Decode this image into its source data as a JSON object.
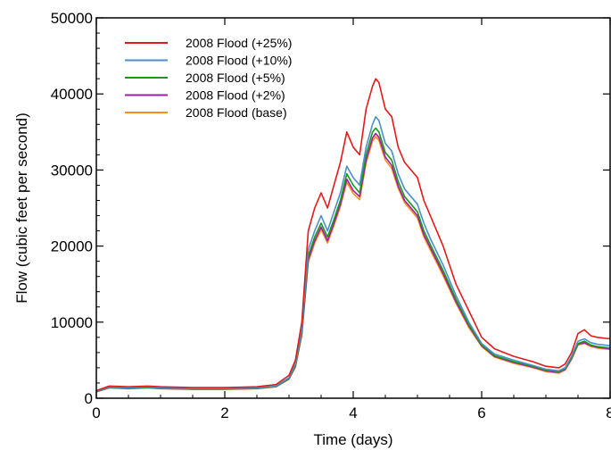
{
  "chart_data": {
    "type": "line",
    "xlabel": "Time (days)",
    "ylabel": "Flow (cubic feet per second)",
    "xlim": [
      0,
      8
    ],
    "ylim": [
      0,
      50000
    ],
    "xticks": [
      "0",
      "2",
      "4",
      "6",
      "8"
    ],
    "yticks": [
      "0",
      "10000",
      "20000",
      "30000",
      "40000",
      "50000"
    ],
    "grid": false,
    "legend_position": "top-left",
    "x": [
      0,
      0.2,
      0.5,
      0.8,
      1.0,
      1.5,
      2.0,
      2.5,
      2.8,
      3.0,
      3.1,
      3.2,
      3.3,
      3.4,
      3.5,
      3.6,
      3.7,
      3.8,
      3.9,
      4.0,
      4.1,
      4.2,
      4.3,
      4.35,
      4.4,
      4.5,
      4.6,
      4.7,
      4.8,
      4.9,
      5.0,
      5.1,
      5.2,
      5.4,
      5.6,
      5.8,
      6.0,
      6.2,
      6.5,
      6.8,
      7.0,
      7.2,
      7.3,
      7.4,
      7.5,
      7.6,
      7.7,
      7.8,
      8.0
    ],
    "series": [
      {
        "name": "2008 Flood (+25%)",
        "color": "#e31a1c",
        "values": [
          1000,
          1600,
          1500,
          1600,
          1500,
          1400,
          1400,
          1500,
          1800,
          3000,
          5000,
          10000,
          22000,
          25000,
          27000,
          25000,
          28000,
          31000,
          35000,
          33000,
          32000,
          38000,
          41000,
          42000,
          41500,
          38000,
          37000,
          33000,
          31000,
          30000,
          29000,
          26000,
          24000,
          20000,
          15000,
          11500,
          8000,
          6500,
          5500,
          4800,
          4200,
          4000,
          4500,
          6000,
          8500,
          9000,
          8200,
          8000,
          7800
        ]
      },
      {
        "name": "2008 Flood (+10%)",
        "color": "#4a8fc7",
        "values": [
          900,
          1450,
          1350,
          1450,
          1350,
          1250,
          1250,
          1350,
          1600,
          2700,
          4500,
          9000,
          19500,
          22000,
          24000,
          22000,
          24500,
          27000,
          30500,
          29000,
          28000,
          33000,
          36000,
          37000,
          36500,
          33500,
          32500,
          29500,
          27500,
          26500,
          25500,
          23000,
          21000,
          17500,
          13500,
          10000,
          7200,
          5800,
          5000,
          4300,
          3800,
          3600,
          4000,
          5500,
          7500,
          7800,
          7300,
          7100,
          6900
        ]
      },
      {
        "name": "2008 Flood (+5%)",
        "color": "#1a9a1a",
        "values": [
          880,
          1400,
          1300,
          1400,
          1300,
          1200,
          1200,
          1300,
          1550,
          2600,
          4300,
          8700,
          18700,
          21200,
          23000,
          21200,
          23500,
          26000,
          29500,
          28000,
          27000,
          32000,
          35000,
          35500,
          35000,
          32300,
          31300,
          28500,
          26500,
          25500,
          24500,
          22000,
          20200,
          16800,
          13000,
          9700,
          7000,
          5600,
          4800,
          4200,
          3700,
          3500,
          3900,
          5300,
          7200,
          7500,
          7000,
          6800,
          6600
        ]
      },
      {
        "name": "2008 Flood (+2%)",
        "color": "#9b1fa8",
        "values": [
          860,
          1380,
          1280,
          1380,
          1280,
          1180,
          1180,
          1280,
          1520,
          2550,
          4200,
          8500,
          18200,
          20700,
          22500,
          20700,
          23000,
          25500,
          28800,
          27300,
          26500,
          31300,
          34200,
          34800,
          34300,
          31700,
          30600,
          27900,
          26000,
          25000,
          24000,
          21500,
          19800,
          16400,
          12700,
          9500,
          6900,
          5500,
          4700,
          4100,
          3600,
          3400,
          3800,
          5200,
          7100,
          7300,
          6900,
          6700,
          6500
        ]
      },
      {
        "name": "2008 Flood (base)",
        "color": "#ff8c1a",
        "values": [
          850,
          1360,
          1260,
          1360,
          1260,
          1160,
          1160,
          1260,
          1500,
          2500,
          4100,
          8300,
          17900,
          20400,
          22200,
          20400,
          22700,
          25200,
          28400,
          26900,
          26100,
          30900,
          33800,
          34400,
          33900,
          31300,
          30200,
          27600,
          25700,
          24700,
          23700,
          21200,
          19500,
          16100,
          12500,
          9300,
          6800,
          5400,
          4600,
          4000,
          3500,
          3300,
          3700,
          5100,
          7000,
          7200,
          6800,
          6600,
          6400
        ]
      }
    ]
  }
}
